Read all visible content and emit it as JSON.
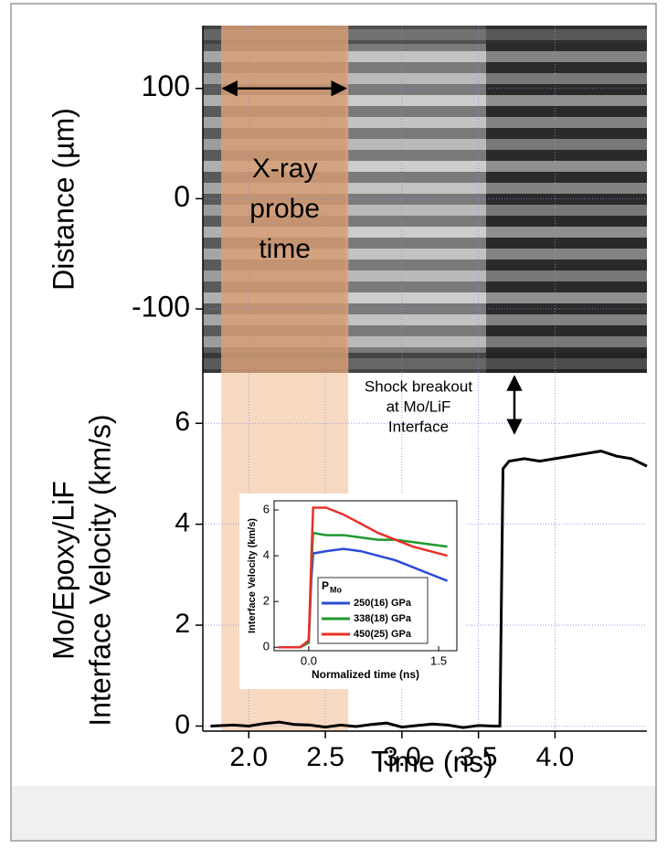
{
  "chart_data": [
    {
      "type": "image",
      "ylabel": "Distance (µm)",
      "ylim": [
        -158,
        157
      ],
      "yticks": [
        100,
        0,
        -100
      ],
      "annotation": [
        "X-ray",
        "probe",
        "time"
      ]
    },
    {
      "type": "line",
      "xlabel": "Time (ns)",
      "ylabel": [
        "Mo/Epoxy/LiF",
        "Interface Velocity (km/s)"
      ],
      "xlim": [
        1.7,
        4.6
      ],
      "ylim": [
        -0.1,
        7
      ],
      "xticks": [
        {
          "value": 2.0,
          "label": "2.0"
        },
        {
          "value": 2.5,
          "label": "2.5"
        },
        {
          "value": 3.0,
          "label": "3.0"
        },
        {
          "value": 3.5,
          "label": "3.5"
        },
        {
          "value": 4.0,
          "label": "4.0"
        }
      ],
      "yticks": [
        0,
        2,
        4,
        6
      ],
      "grid": true,
      "probe_window": [
        1.82,
        2.65
      ],
      "annotation": [
        "Shock breakout",
        "at Mo/LiF",
        "Interface"
      ],
      "x": [
        1.75,
        1.9,
        2.0,
        2.1,
        2.2,
        2.3,
        2.4,
        2.5,
        2.6,
        2.7,
        2.8,
        2.9,
        3.0,
        3.1,
        3.2,
        3.3,
        3.4,
        3.5,
        3.6,
        3.64,
        3.66,
        3.7,
        3.8,
        3.9,
        4.0,
        4.1,
        4.2,
        4.3,
        4.4,
        4.5,
        4.6
      ],
      "values": [
        0,
        0.02,
        0,
        0.05,
        0.08,
        0.03,
        0.02,
        -0.02,
        0.02,
        -0.01,
        0.03,
        0.06,
        -0.02,
        0.01,
        0.04,
        0.02,
        -0.03,
        0.01,
        0.0,
        0.0,
        5.1,
        5.25,
        5.3,
        5.25,
        5.3,
        5.35,
        5.4,
        5.45,
        5.35,
        5.3,
        5.15
      ],
      "color": "#000000"
    },
    {
      "type": "line",
      "xlabel": "Normalized time (ns)",
      "ylabel": "Interface Velocity (km/s)",
      "xlim": [
        -0.4,
        1.71
      ],
      "ylim": [
        -0.15,
        6.4
      ],
      "xticks": [
        {
          "value": 0,
          "label": "0.0"
        },
        {
          "value": 1.5,
          "label": "1.5"
        }
      ],
      "yticks": [
        0,
        2,
        4,
        6
      ],
      "legend_title": "P",
      "legend_title_sub": "Mo",
      "legend": "lower-center",
      "x": [
        -0.35,
        -0.1,
        0.0,
        0.03,
        0.05,
        0.2,
        0.4,
        0.6,
        0.8,
        1.0,
        1.2,
        1.4,
        1.6
      ],
      "series": [
        {
          "name": "250(16) GPa",
          "color": "#2a4bd7",
          "values": [
            0,
            0,
            0.2,
            3,
            4.1,
            4.2,
            4.3,
            4.2,
            4.0,
            3.8,
            3.5,
            3.2,
            2.9
          ]
        },
        {
          "name": "338(18) GPa",
          "color": "#1e9a2e",
          "values": [
            0,
            0,
            0.2,
            3.5,
            5.0,
            4.9,
            4.9,
            4.8,
            4.7,
            4.7,
            4.6,
            4.5,
            4.4
          ]
        },
        {
          "name": "450(25) GPa",
          "color": "#e8302a",
          "values": [
            0,
            0,
            0.3,
            4,
            6.1,
            6.1,
            5.8,
            5.4,
            5.0,
            4.7,
            4.4,
            4.2,
            4.0
          ]
        }
      ]
    }
  ]
}
